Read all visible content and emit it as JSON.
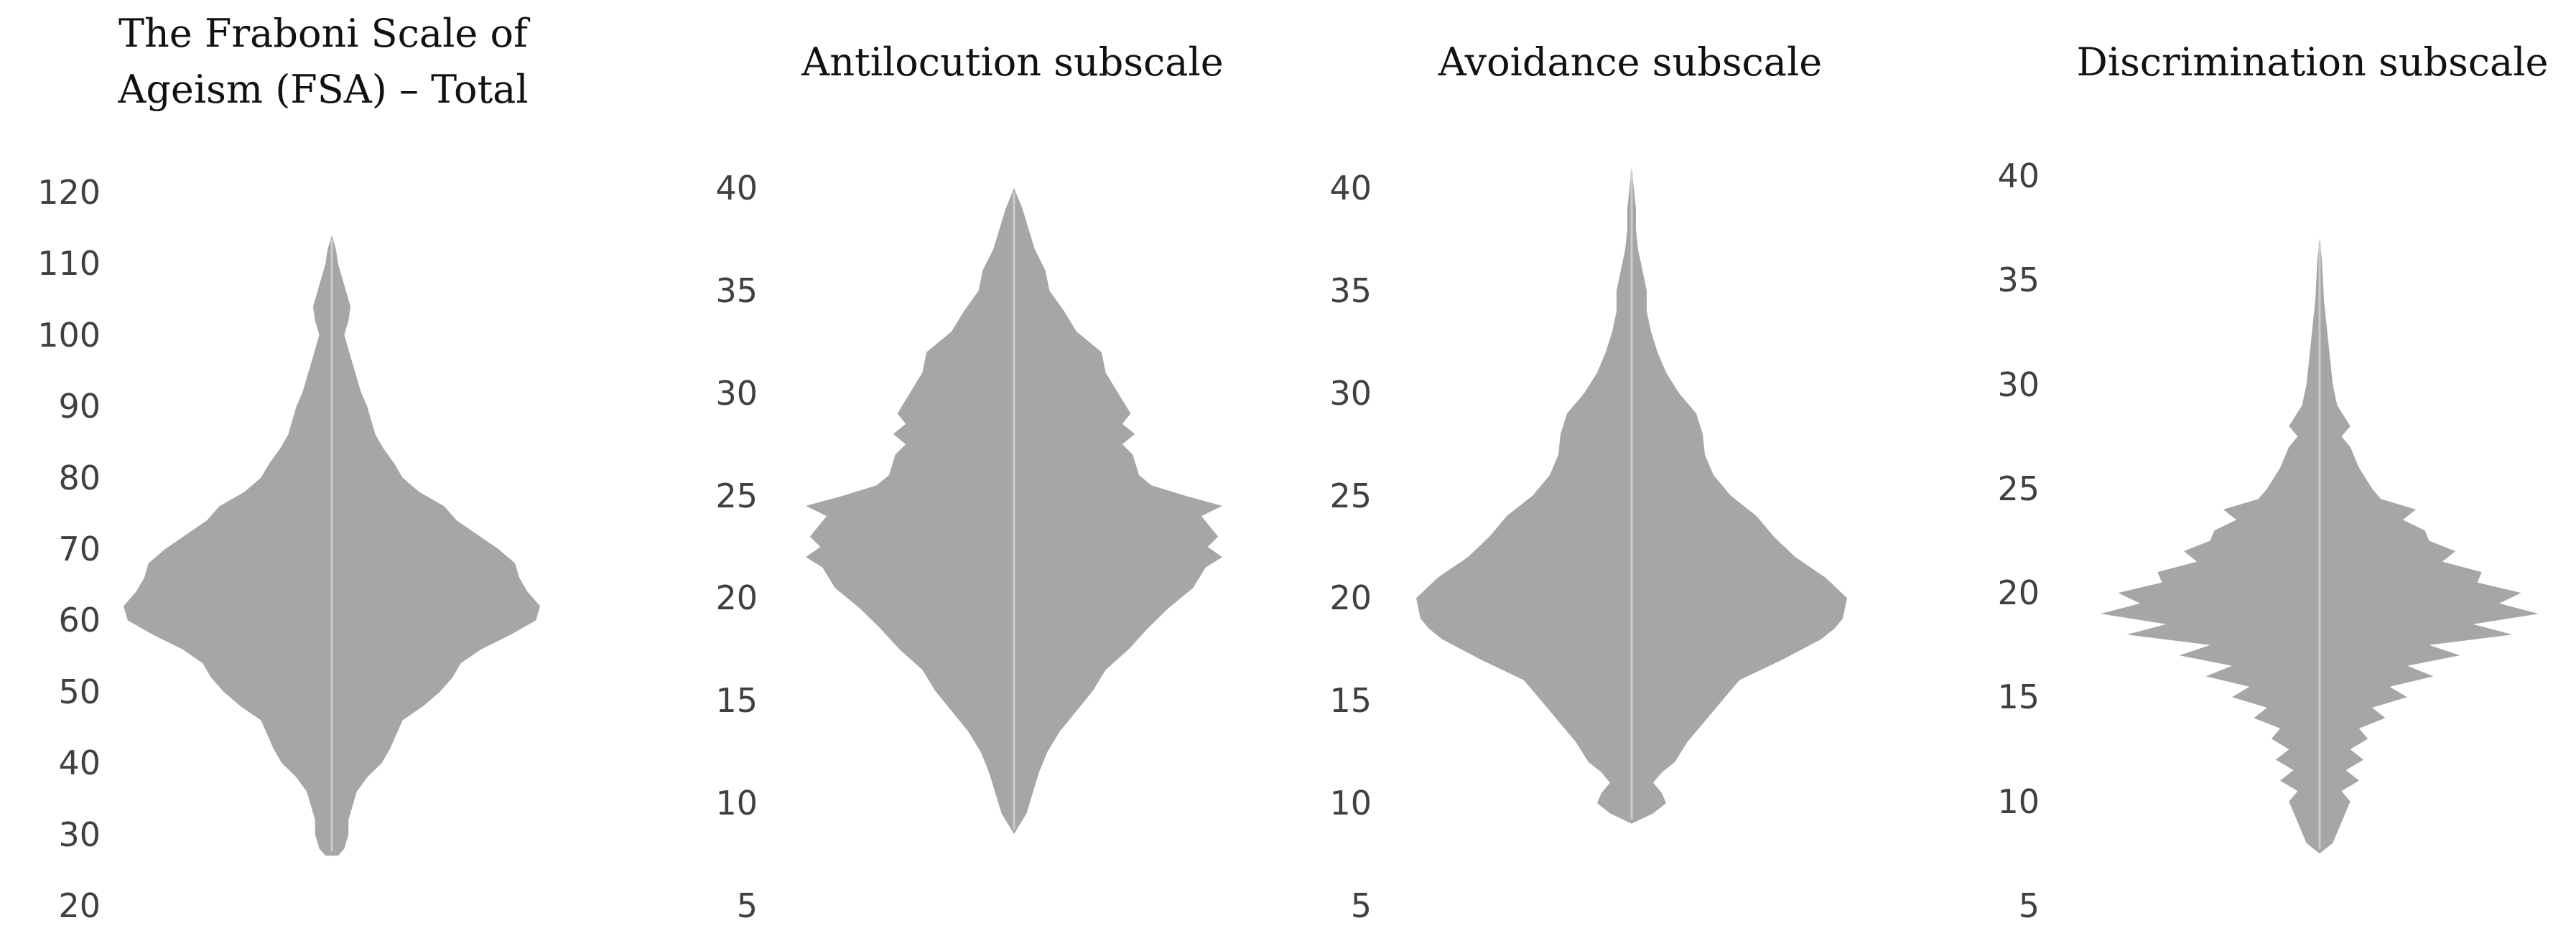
{
  "chart_data": [
    {
      "type": "violin",
      "title": "The Fraboni Scale of\nAgeism (FSA) – Total",
      "yticks": [
        120,
        110,
        100,
        90,
        80,
        70,
        60,
        50,
        40,
        30,
        20
      ],
      "ylim": [
        20,
        120
      ],
      "y_range_of_data": [
        27,
        114
      ],
      "density": [
        [
          27,
          0.03
        ],
        [
          28,
          0.06
        ],
        [
          30,
          0.08
        ],
        [
          32,
          0.08
        ],
        [
          34,
          0.1
        ],
        [
          36,
          0.12
        ],
        [
          38,
          0.17
        ],
        [
          40,
          0.24
        ],
        [
          42,
          0.28
        ],
        [
          44,
          0.31
        ],
        [
          46,
          0.34
        ],
        [
          48,
          0.44
        ],
        [
          50,
          0.52
        ],
        [
          52,
          0.58
        ],
        [
          54,
          0.62
        ],
        [
          56,
          0.72
        ],
        [
          58,
          0.86
        ],
        [
          60,
          0.98
        ],
        [
          62,
          1.0
        ],
        [
          64,
          0.94
        ],
        [
          66,
          0.9
        ],
        [
          68,
          0.88
        ],
        [
          70,
          0.8
        ],
        [
          72,
          0.7
        ],
        [
          74,
          0.6
        ],
        [
          76,
          0.54
        ],
        [
          78,
          0.42
        ],
        [
          80,
          0.34
        ],
        [
          82,
          0.3
        ],
        [
          84,
          0.25
        ],
        [
          86,
          0.21
        ],
        [
          88,
          0.19
        ],
        [
          90,
          0.17
        ],
        [
          92,
          0.14
        ],
        [
          94,
          0.12
        ],
        [
          96,
          0.1
        ],
        [
          98,
          0.08
        ],
        [
          100,
          0.06
        ],
        [
          102,
          0.08
        ],
        [
          104,
          0.09
        ],
        [
          106,
          0.07
        ],
        [
          108,
          0.05
        ],
        [
          110,
          0.03
        ],
        [
          112,
          0.02
        ],
        [
          114,
          0.0
        ]
      ],
      "fill_color": "#a6a6a6",
      "median_line_color": "#cccccc"
    },
    {
      "type": "violin",
      "title": "Antilocution subscale",
      "yticks": [
        40,
        35,
        30,
        25,
        20,
        15,
        10,
        5
      ],
      "ylim": [
        5,
        40
      ],
      "y_range_of_data": [
        8.5,
        40
      ],
      "density": [
        [
          8.5,
          0.0
        ],
        [
          9.5,
          0.06
        ],
        [
          10.5,
          0.09
        ],
        [
          11.5,
          0.12
        ],
        [
          12.5,
          0.16
        ],
        [
          13.5,
          0.22
        ],
        [
          14.5,
          0.3
        ],
        [
          15.5,
          0.38
        ],
        [
          16.5,
          0.44
        ],
        [
          17.5,
          0.55
        ],
        [
          18.5,
          0.64
        ],
        [
          19.5,
          0.74
        ],
        [
          20.5,
          0.86
        ],
        [
          21.5,
          0.92
        ],
        [
          22,
          1.0
        ],
        [
          22.5,
          0.93
        ],
        [
          23,
          0.98
        ],
        [
          23.5,
          0.94
        ],
        [
          24,
          0.9
        ],
        [
          24.5,
          1.0
        ],
        [
          25,
          0.82
        ],
        [
          25.5,
          0.66
        ],
        [
          26,
          0.6
        ],
        [
          27,
          0.57
        ],
        [
          27.5,
          0.52
        ],
        [
          28,
          0.58
        ],
        [
          28.5,
          0.52
        ],
        [
          29,
          0.56
        ],
        [
          30,
          0.5
        ],
        [
          31,
          0.44
        ],
        [
          32,
          0.42
        ],
        [
          32.5,
          0.36
        ],
        [
          33,
          0.3
        ],
        [
          34,
          0.24
        ],
        [
          35,
          0.17
        ],
        [
          36,
          0.15
        ],
        [
          37,
          0.1
        ],
        [
          38,
          0.07
        ],
        [
          39,
          0.04
        ],
        [
          40,
          0.0
        ]
      ],
      "fill_color": "#a6a6a6",
      "median_line_color": "#cccccc"
    },
    {
      "type": "violin",
      "title": "Avoidance subscale",
      "yticks": [
        40,
        35,
        30,
        25,
        20,
        15,
        10,
        5
      ],
      "ylim": [
        5,
        40
      ],
      "y_range_of_data": [
        9,
        41
      ],
      "density": [
        [
          9,
          0.0
        ],
        [
          9.5,
          0.1
        ],
        [
          10,
          0.16
        ],
        [
          10.5,
          0.14
        ],
        [
          11,
          0.1
        ],
        [
          11.5,
          0.14
        ],
        [
          12,
          0.2
        ],
        [
          13,
          0.26
        ],
        [
          14,
          0.34
        ],
        [
          15,
          0.42
        ],
        [
          16,
          0.5
        ],
        [
          17,
          0.7
        ],
        [
          18,
          0.88
        ],
        [
          18.5,
          0.94
        ],
        [
          19,
          0.98
        ],
        [
          20,
          1.0
        ],
        [
          21,
          0.9
        ],
        [
          22,
          0.76
        ],
        [
          23,
          0.66
        ],
        [
          24,
          0.58
        ],
        [
          25,
          0.46
        ],
        [
          26,
          0.38
        ],
        [
          27,
          0.34
        ],
        [
          28,
          0.33
        ],
        [
          29,
          0.3
        ],
        [
          30,
          0.22
        ],
        [
          31,
          0.16
        ],
        [
          32,
          0.12
        ],
        [
          33,
          0.09
        ],
        [
          34,
          0.07
        ],
        [
          35,
          0.07
        ],
        [
          36,
          0.05
        ],
        [
          37,
          0.03
        ],
        [
          38,
          0.02
        ],
        [
          39,
          0.02
        ],
        [
          40,
          0.01
        ],
        [
          41,
          0.0
        ]
      ],
      "fill_color": "#a6a6a6",
      "median_line_color": "#cccccc"
    },
    {
      "type": "violin",
      "title": "Discrimination subscale",
      "yticks": [
        40,
        35,
        30,
        25,
        20,
        15,
        10,
        5
      ],
      "ylim": [
        5,
        40
      ],
      "y_range_of_data": [
        7.5,
        37
      ],
      "density": [
        [
          7.5,
          0.0
        ],
        [
          8,
          0.06
        ],
        [
          9,
          0.1
        ],
        [
          10,
          0.14
        ],
        [
          10.5,
          0.1
        ],
        [
          11,
          0.18
        ],
        [
          11.5,
          0.12
        ],
        [
          12,
          0.2
        ],
        [
          12.5,
          0.14
        ],
        [
          13,
          0.22
        ],
        [
          13.5,
          0.18
        ],
        [
          14,
          0.3
        ],
        [
          14.5,
          0.24
        ],
        [
          15,
          0.4
        ],
        [
          15.5,
          0.32
        ],
        [
          16,
          0.52
        ],
        [
          16.5,
          0.4
        ],
        [
          17,
          0.64
        ],
        [
          17.5,
          0.5
        ],
        [
          18,
          0.88
        ],
        [
          18.5,
          0.7
        ],
        [
          19,
          1.0
        ],
        [
          19.5,
          0.82
        ],
        [
          20,
          0.92
        ],
        [
          20.5,
          0.72
        ],
        [
          21,
          0.74
        ],
        [
          21.5,
          0.56
        ],
        [
          22,
          0.62
        ],
        [
          22.5,
          0.5
        ],
        [
          23,
          0.48
        ],
        [
          23.5,
          0.38
        ],
        [
          24,
          0.44
        ],
        [
          24.5,
          0.28
        ],
        [
          25,
          0.24
        ],
        [
          26,
          0.18
        ],
        [
          27,
          0.14
        ],
        [
          27.5,
          0.1
        ],
        [
          28,
          0.14
        ],
        [
          29,
          0.08
        ],
        [
          30,
          0.06
        ],
        [
          31,
          0.05
        ],
        [
          32,
          0.04
        ],
        [
          33,
          0.03
        ],
        [
          34,
          0.02
        ],
        [
          36,
          0.01
        ],
        [
          37,
          0.0
        ]
      ],
      "fill_color": "#a6a6a6",
      "median_line_color": "#cccccc"
    }
  ]
}
